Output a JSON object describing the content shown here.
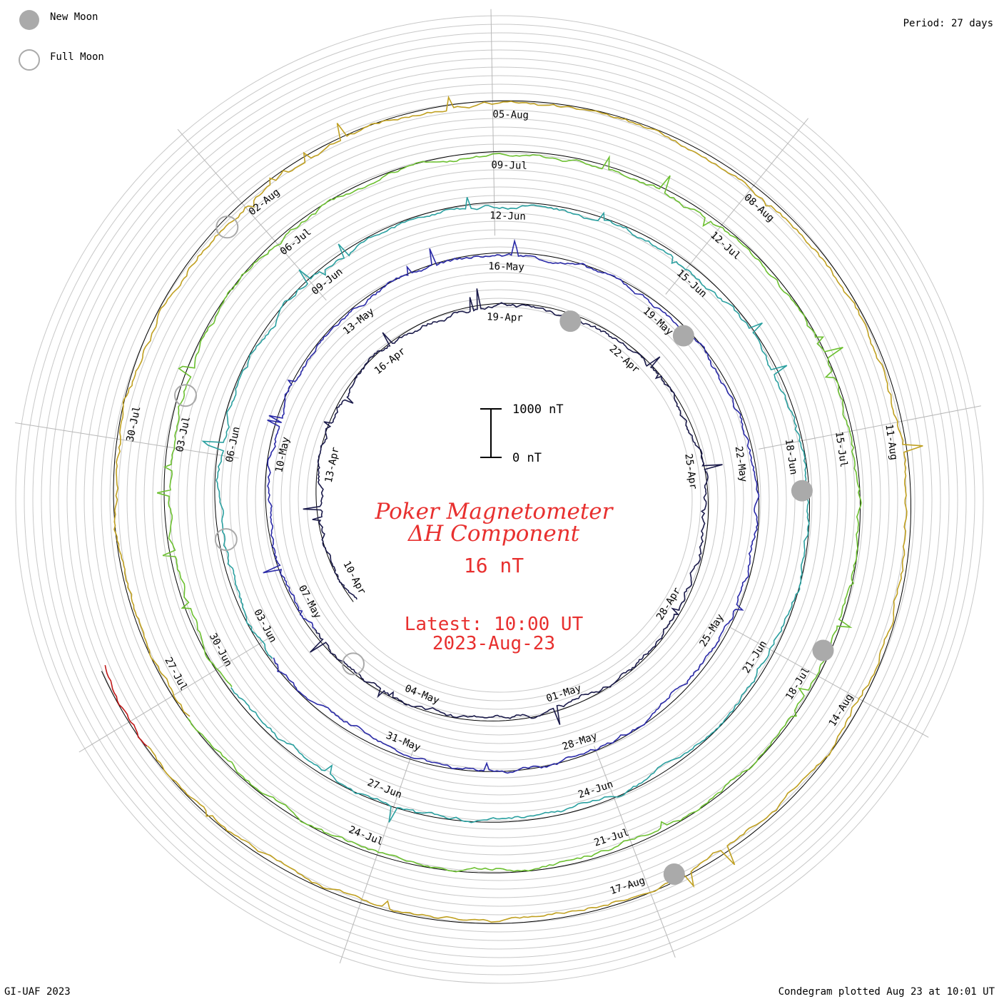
{
  "legend": {
    "new_moon": "New Moon",
    "full_moon": "Full Moon"
  },
  "period": "Period: 27 days",
  "credit": "GI-UAF 2023",
  "plotted": "Condegram plotted Aug 23 at 10:01 UT",
  "title_line1": "Poker Magnetometer",
  "title_line2": "ΔH Component",
  "current_value": "16 nT",
  "latest_time": "Latest: 10:00 UT",
  "latest_date": "2023-Aug-23",
  "scale": {
    "top_label": "1000 nT",
    "bottom_label": "0 nT"
  },
  "colors": {
    "accent": "#e8302f",
    "grid": "#c8c8c8",
    "moon_fill": "#aaaaaa"
  },
  "chart_data": {
    "type": "line",
    "title": "Poker Magnetometer ΔH Component",
    "subtitle": "16 nT",
    "period_days": 27,
    "scale_nT": [
      0,
      1000
    ],
    "date_labels": [
      "10-Apr",
      "13-Apr",
      "16-Apr",
      "19-Apr",
      "22-Apr",
      "25-Apr",
      "28-Apr",
      "01-May",
      "04-May",
      "07-May",
      "10-May",
      "13-May",
      "16-May",
      "19-May",
      "22-May",
      "25-May",
      "28-May",
      "31-May",
      "03-Jun",
      "06-Jun",
      "09-Jun",
      "12-Jun",
      "15-Jun",
      "18-Jun",
      "21-Jun",
      "24-Jun",
      "27-Jun",
      "30-Jun",
      "03-Jul",
      "06-Jul",
      "09-Jul",
      "12-Jul",
      "15-Jul",
      "18-Jul",
      "21-Jul",
      "24-Jul",
      "27-Jul",
      "30-Jul",
      "02-Aug",
      "05-Aug",
      "08-Aug",
      "11-Aug",
      "14-Aug",
      "17-Aug"
    ],
    "series": [
      {
        "start": "2023-04-09",
        "end": "2023-05-06",
        "color": "#1a1a4a"
      },
      {
        "start": "2023-05-06",
        "end": "2023-06-02",
        "color": "#2a2aa8"
      },
      {
        "start": "2023-06-02",
        "end": "2023-06-29",
        "color": "#2aa0a0"
      },
      {
        "start": "2023-06-29",
        "end": "2023-07-26",
        "color": "#6cc030"
      },
      {
        "start": "2023-07-26",
        "end": "2023-08-22",
        "color": "#c0a020"
      },
      {
        "start": "2023-08-22",
        "end": "2023-08-23",
        "color": "#c01818"
      }
    ],
    "new_moons": [
      "2023-04-20",
      "2023-05-19",
      "2023-06-18",
      "2023-07-17",
      "2023-08-16"
    ],
    "full_moons": [
      "2023-05-05",
      "2023-06-04",
      "2023-07-03",
      "2023-08-01"
    ]
  }
}
